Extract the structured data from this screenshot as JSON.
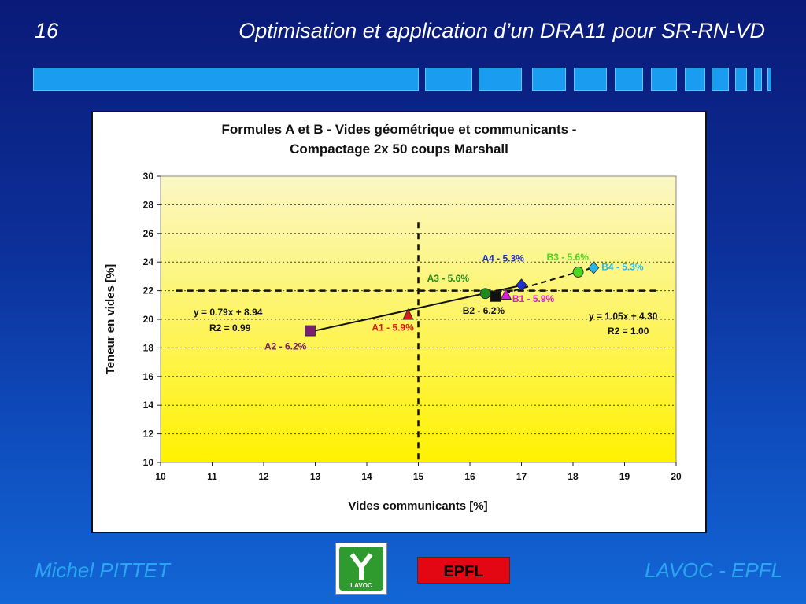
{
  "slide": {
    "number": "16",
    "title": "Optimisation et application d’un DRA11 pour SR-RN-VD",
    "author": "Michel PITTET",
    "organization": "LAVOC - EPFL",
    "logo_lavoc_text": "LAVOC",
    "logo_epfl_text": "EPFL"
  },
  "colors": {
    "background": "#0c2f98",
    "accent": "#1a9cf0",
    "footer_text": "#2aa6f0",
    "plot_top": "#fbf7c6",
    "plot_bottom": "#fff200"
  },
  "chart_data": {
    "type": "scatter",
    "title": "Formules A et B - Vides géométrique et communicants -",
    "subtitle": "Compactage 2x 50 coups Marshall",
    "xlabel": "Vides communicants  [%]",
    "ylabel": "Teneur en vides  [%]",
    "xlim": [
      10,
      20
    ],
    "ylim": [
      10,
      30
    ],
    "xticks": [
      "10",
      "11",
      "12",
      "13",
      "14",
      "15",
      "16",
      "17",
      "18",
      "19",
      "20"
    ],
    "yticks": [
      "10",
      "12",
      "14",
      "16",
      "18",
      "20",
      "22",
      "24",
      "26",
      "28",
      "30"
    ],
    "grid": "horizontal dotted",
    "reference_lines": {
      "x": 15,
      "y": 22
    },
    "points": [
      {
        "label": "A1 - 5.9%",
        "x": 14.8,
        "y": 20.3,
        "marker": "triangle",
        "color": "#d81b1b"
      },
      {
        "label": "A2 - 6.2%",
        "x": 12.9,
        "y": 19.2,
        "marker": "square",
        "color": "#7a1f6e"
      },
      {
        "label": "A3 - 5.6%",
        "x": 16.3,
        "y": 21.8,
        "marker": "circle",
        "color": "#1f8a1f"
      },
      {
        "label": "A4 - 5.3%",
        "x": 17.0,
        "y": 22.4,
        "marker": "diamond",
        "color": "#1c2fd0"
      },
      {
        "label": "B1 - 5.9%",
        "x": 16.7,
        "y": 21.7,
        "marker": "triangle",
        "color": "#d61fd6"
      },
      {
        "label": "B2 - 6.2%",
        "x": 16.5,
        "y": 21.6,
        "marker": "square",
        "color": "#111111"
      },
      {
        "label": "B3 - 5.6%",
        "x": 18.1,
        "y": 23.3,
        "marker": "circle",
        "color": "#49d81f"
      },
      {
        "label": "B4 - 5.3%",
        "x": 18.4,
        "y": 23.6,
        "marker": "diamond",
        "color": "#26b6ee"
      }
    ],
    "trendlines": [
      {
        "series": "A",
        "equation": "y = 0.79x + 8.94",
        "r2": "R2 = 0.99",
        "slope": 0.79,
        "intercept": 8.94,
        "x_range": [
          12.9,
          17.0
        ],
        "style": "solid"
      },
      {
        "series": "B",
        "equation": "y = 1.05x + 4.30",
        "r2": "R2 = 1.00",
        "slope": 1.05,
        "intercept": 4.3,
        "x_range": [
          16.5,
          18.4
        ],
        "style": "dashed"
      }
    ]
  }
}
